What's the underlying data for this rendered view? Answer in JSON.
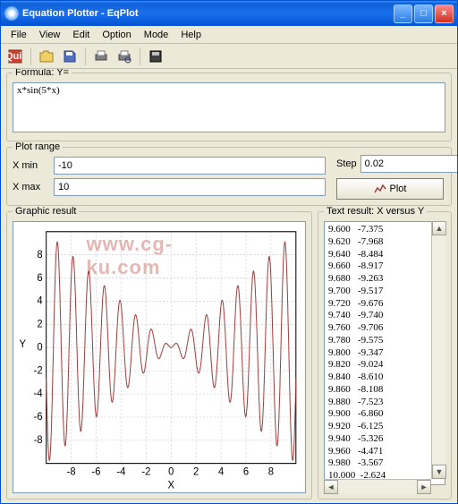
{
  "window": {
    "title": "Equation Plotter - EqPlot",
    "min": "_",
    "max": "□",
    "close": "×"
  },
  "menu": [
    "File",
    "View",
    "Edit",
    "Option",
    "Mode",
    "Help"
  ],
  "toolbar": {
    "icons": [
      "quit",
      "open",
      "save",
      "print",
      "print-preview",
      "disk"
    ]
  },
  "formula": {
    "label": "Formula: Y=",
    "value": "x*sin(5*x)"
  },
  "plot_range": {
    "label": "Plot range",
    "xmin_label": "X min",
    "xmin": "-10",
    "xmax_label": "X max",
    "xmax": "10",
    "step_label": "Step",
    "step": "0.02",
    "plot_btn": "Plot"
  },
  "graphic": {
    "label": "Graphic result",
    "xlabel": "X",
    "ylabel": "Y",
    "xlim": [
      -10,
      10
    ],
    "ylim": [
      -10,
      10
    ],
    "xticks": [
      -8,
      -6,
      -4,
      -2,
      0,
      2,
      4,
      6,
      8
    ],
    "yticks": [
      -8,
      -6,
      -4,
      -2,
      0,
      2,
      4,
      6,
      8
    ],
    "line_color": "#a04040",
    "grid_color": "#c0c0c0",
    "axis_color": "#000000",
    "bg_color": "#ffffff"
  },
  "text_result": {
    "label": "Text result: X versus Y",
    "rows": [
      [
        "9.600",
        "-7.375"
      ],
      [
        "9.620",
        "-7.968"
      ],
      [
        "9.640",
        "-8.484"
      ],
      [
        "9.660",
        "-8.917"
      ],
      [
        "9.680",
        "-9.263"
      ],
      [
        "9.700",
        "-9.517"
      ],
      [
        "9.720",
        "-9.676"
      ],
      [
        "9.740",
        "-9.740"
      ],
      [
        "9.760",
        "-9.706"
      ],
      [
        "9.780",
        "-9.575"
      ],
      [
        "9.800",
        "-9.347"
      ],
      [
        "9.820",
        "-9.024"
      ],
      [
        "9.840",
        "-8.610"
      ],
      [
        "9.860",
        "-8.108"
      ],
      [
        "9.880",
        "-7.523"
      ],
      [
        "9.900",
        "-6.860"
      ],
      [
        "9.920",
        "-6.125"
      ],
      [
        "9.940",
        "-5.326"
      ],
      [
        "9.960",
        "-4.471"
      ],
      [
        "9.980",
        "-3.567"
      ],
      [
        "10.000",
        "-2.624"
      ]
    ]
  },
  "watermark": "www.cg-ku.com"
}
